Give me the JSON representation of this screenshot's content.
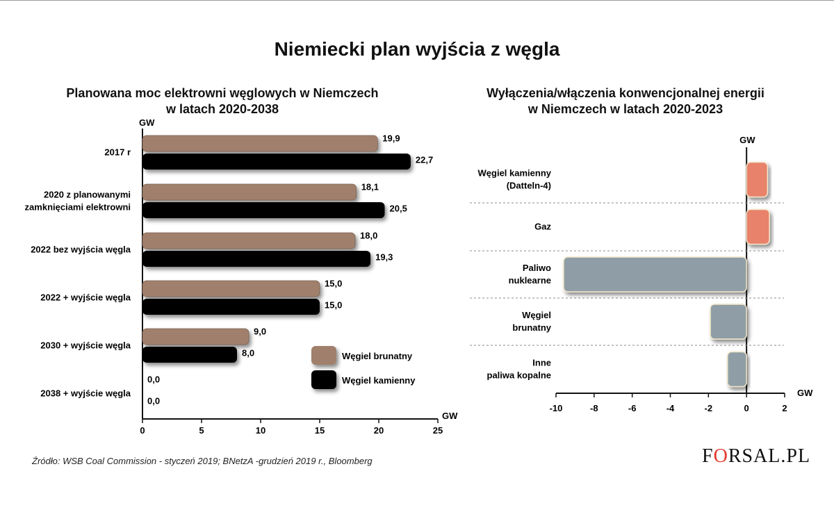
{
  "title": "Niemiecki plan wyjścia z węgla",
  "source": "Źródło: WSB Coal Commission - styczeń 2019; BNetzA  -grudzień 2019 r., Bloomberg",
  "logo": {
    "text_before": "F",
    "text_o": "O",
    "text_after": "RSAL.PL"
  },
  "colors": {
    "brown": "#a0806c",
    "black": "#050505",
    "salmon": "#e8826b",
    "gray": "#8f9ea6"
  },
  "chart_data": [
    {
      "type": "bar",
      "orientation": "horizontal",
      "title": "Planowana moc elektrowni węglowych w Niemczech w latach 2020-2038",
      "title_lines": [
        "Planowana moc elektrowni węglowych w Niemczech",
        "w latach 2020-2038"
      ],
      "unit_top": "GW",
      "xlabel": "GW",
      "xlim": [
        0,
        25
      ],
      "xticks": [
        0,
        5,
        10,
        15,
        20,
        25
      ],
      "categories": [
        [
          "2017 r"
        ],
        [
          "2020 z planowanymi",
          "zamknięciami elektrowni"
        ],
        [
          "2022 bez wyjścia węgla"
        ],
        [
          "2022 + wyjście węgla"
        ],
        [
          "2030 + wyjście węgla"
        ],
        [
          "2038 + wyjście węgla"
        ]
      ],
      "series": [
        {
          "name": "Węgiel brunatny",
          "color": "#a0806c",
          "values": [
            19.9,
            18.1,
            18.0,
            15.0,
            9.0,
            0.0
          ],
          "labels": [
            "19,9",
            "18,1",
            "18,0",
            "15,0",
            "9,0",
            "0,0"
          ]
        },
        {
          "name": "Węgiel kamienny",
          "color": "#050505",
          "values": [
            22.7,
            20.5,
            19.3,
            15.0,
            8.0,
            0.0
          ],
          "labels": [
            "22,7",
            "20,5",
            "19,3",
            "15,0",
            "8,0",
            "0,0"
          ]
        }
      ],
      "legend_position": "bottom-right"
    },
    {
      "type": "bar",
      "orientation": "horizontal",
      "title": "Wyłączenia/włączenia konwencjonalnej energii w Niemczech w latach 2020-2023",
      "title_lines": [
        "Wyłączenia/włączenia konwencjonalnej energii",
        "w Niemczech w latach 2020-2023"
      ],
      "unit_top": "GW",
      "xlabel": "GW",
      "xlim": [
        -10,
        2
      ],
      "xticks": [
        -10,
        -8,
        -6,
        -4,
        -2,
        0,
        2
      ],
      "categories": [
        [
          "Węgiel kamienny",
          "(Datteln-4)"
        ],
        [
          "Gaz"
        ],
        [
          "Paliwo",
          "nuklearne"
        ],
        [
          "Węgiel",
          "brunatny"
        ],
        [
          "Inne",
          "paliwa kopalne"
        ]
      ],
      "values": [
        1.1,
        1.2,
        -9.6,
        -1.9,
        -1.0
      ],
      "positive_color": "#e8826b",
      "negative_color": "#8f9ea6"
    }
  ]
}
